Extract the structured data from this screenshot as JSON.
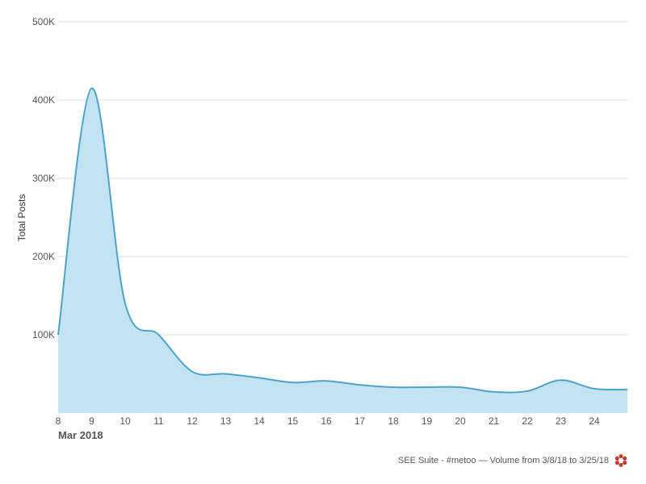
{
  "chart_data": {
    "type": "area",
    "ylabel": "Total Posts",
    "month_label": "Mar 2018",
    "ylim": [
      0,
      500000
    ],
    "yticks": [
      100000,
      200000,
      300000,
      400000,
      500000
    ],
    "ytick_labels": [
      "100K",
      "200K",
      "300K",
      "400K",
      "500K"
    ],
    "xticks": [
      "8",
      "9",
      "10",
      "11",
      "12",
      "13",
      "14",
      "15",
      "16",
      "17",
      "18",
      "19",
      "20",
      "21",
      "22",
      "23",
      "24"
    ],
    "grid": true,
    "colors": {
      "fill": "#c3e3f3",
      "line": "#4ea3c6",
      "grid": "#dddddd"
    },
    "x": [
      "2018-03-08",
      "2018-03-09",
      "2018-03-10",
      "2018-03-11",
      "2018-03-12",
      "2018-03-13",
      "2018-03-14",
      "2018-03-15",
      "2018-03-16",
      "2018-03-17",
      "2018-03-18",
      "2018-03-19",
      "2018-03-20",
      "2018-03-21",
      "2018-03-22",
      "2018-03-23",
      "2018-03-24",
      "2018-03-25"
    ],
    "values": [
      100000,
      415000,
      140000,
      100000,
      53000,
      50000,
      45000,
      39000,
      41000,
      36000,
      33000,
      33000,
      33000,
      27000,
      28000,
      42000,
      31000,
      30000
    ]
  },
  "footer": {
    "text": "SEE Suite - #metoo — Volume from 3/8/18 to 3/25/18",
    "logo_icon": "flower-logo-icon",
    "logo_color": "#c0392b"
  }
}
